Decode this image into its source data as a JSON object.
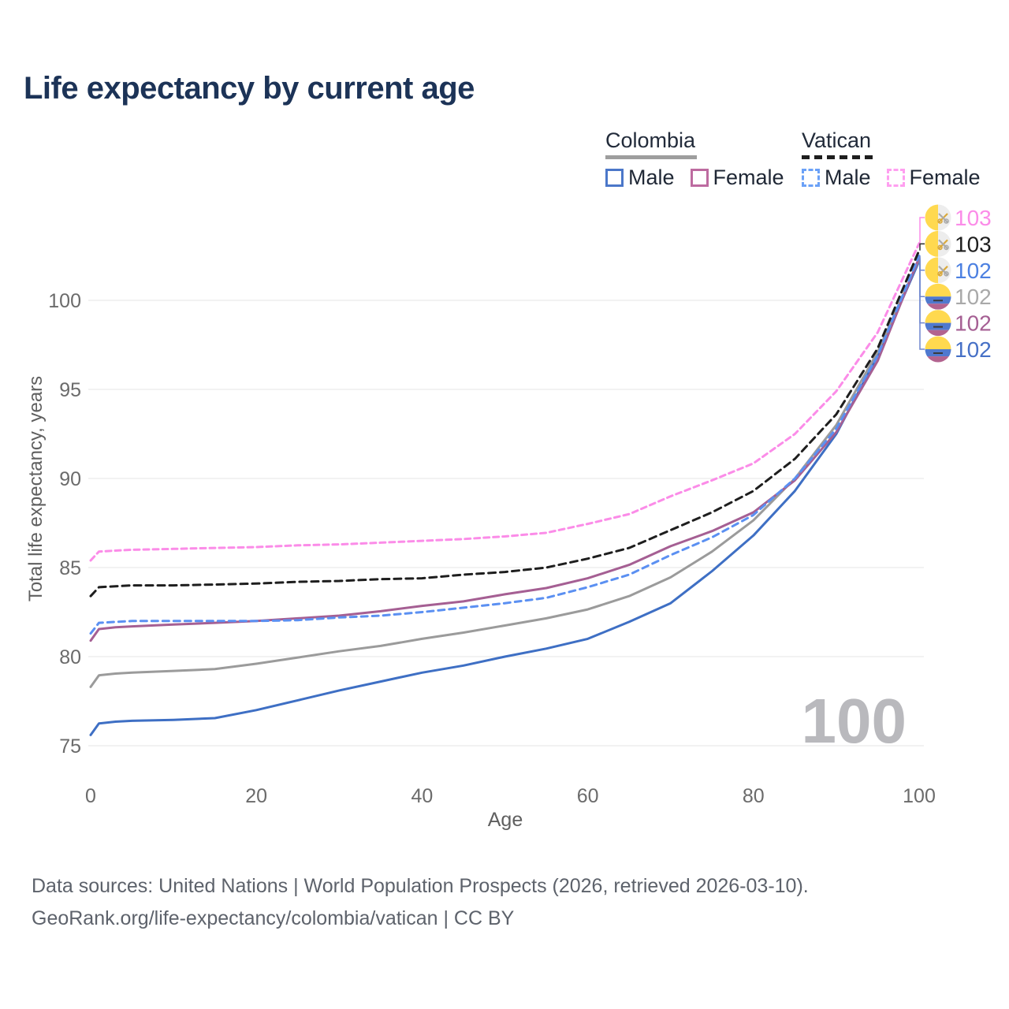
{
  "title": "Life expectancy by current age",
  "legend": {
    "groups": [
      {
        "country": "Colombia",
        "line_style": "solid",
        "underline_color": "#9e9e9e",
        "items": [
          {
            "label": "Male",
            "color": "#4b77c9"
          },
          {
            "label": "Female",
            "color": "#bd6ba0"
          }
        ]
      },
      {
        "country": "Vatican",
        "line_style": "dashed",
        "underline_color": "#1e1e1e",
        "items": [
          {
            "label": "Male",
            "color": "#6ba1f7"
          },
          {
            "label": "Female",
            "color": "#ff9ff0"
          }
        ]
      }
    ]
  },
  "chart_data": {
    "type": "line",
    "xlabel": "Age",
    "ylabel": "Total life expectancy, years",
    "xticks": [
      0,
      20,
      40,
      60,
      80,
      100
    ],
    "yticks": [
      75,
      80,
      85,
      90,
      95,
      100
    ],
    "xlim": [
      0,
      100
    ],
    "ylim": [
      74,
      104
    ],
    "grid": "horizontal",
    "grid_color": "#ebebeb",
    "tick_color": "#6b6b6b",
    "watermark": "100",
    "watermark_color": "#b9b9bd",
    "x": [
      0,
      1,
      3,
      5,
      10,
      15,
      20,
      25,
      30,
      35,
      40,
      45,
      50,
      55,
      60,
      65,
      70,
      75,
      80,
      85,
      90,
      95,
      100
    ],
    "series": [
      {
        "id": "colombia_male",
        "name": "Colombia Male",
        "style": "solid",
        "color": "#3e6fc4",
        "values": [
          75.6,
          76.25,
          76.35,
          76.4,
          76.45,
          76.55,
          77.0,
          77.55,
          78.1,
          78.6,
          79.1,
          79.5,
          80.0,
          80.45,
          81.0,
          81.95,
          83.0,
          84.8,
          86.8,
          89.3,
          92.5,
          96.9,
          102.2
        ]
      },
      {
        "id": "colombia_both",
        "name": "Colombia (both sexes)",
        "style": "solid",
        "color": "#9b9b9b",
        "values": [
          78.3,
          78.95,
          79.05,
          79.1,
          79.2,
          79.3,
          79.6,
          79.95,
          80.3,
          80.6,
          81.0,
          81.35,
          81.75,
          82.15,
          82.65,
          83.4,
          84.45,
          85.9,
          87.65,
          90.0,
          93.0,
          97.1,
          102.3
        ]
      },
      {
        "id": "colombia_female",
        "name": "Colombia Female",
        "style": "solid",
        "color": "#a55f93",
        "values": [
          80.9,
          81.55,
          81.65,
          81.7,
          81.8,
          81.9,
          82.0,
          82.15,
          82.3,
          82.55,
          82.85,
          83.1,
          83.5,
          83.85,
          84.4,
          85.15,
          86.2,
          87.05,
          88.1,
          89.9,
          92.6,
          96.6,
          102.4
        ]
      },
      {
        "id": "vatican_male",
        "name": "Vatican Male",
        "style": "dashed",
        "color": "#5b90f2",
        "values": [
          81.3,
          81.9,
          81.95,
          82.0,
          82.0,
          82.0,
          82.0,
          82.05,
          82.2,
          82.3,
          82.5,
          82.75,
          83.0,
          83.3,
          83.9,
          84.6,
          85.7,
          86.7,
          87.95,
          90.0,
          92.8,
          96.9,
          102.5
        ]
      },
      {
        "id": "vatican_both",
        "name": "Vatican (both sexes)",
        "style": "dashed",
        "color": "#1e1e1e",
        "values": [
          83.4,
          83.9,
          83.95,
          84.0,
          84.0,
          84.05,
          84.1,
          84.2,
          84.25,
          84.35,
          84.4,
          84.6,
          84.75,
          85.0,
          85.5,
          86.1,
          87.1,
          88.1,
          89.3,
          91.1,
          93.6,
          97.3,
          102.8
        ]
      },
      {
        "id": "vatican_female",
        "name": "Vatican Female",
        "style": "dashed",
        "color": "#fb8ce8",
        "values": [
          85.4,
          85.9,
          85.95,
          86.0,
          86.05,
          86.1,
          86.15,
          86.25,
          86.3,
          86.4,
          86.5,
          86.6,
          86.75,
          86.95,
          87.45,
          88.0,
          89.0,
          89.9,
          90.85,
          92.5,
          94.9,
          98.2,
          103.2
        ]
      }
    ],
    "end_labels": [
      {
        "text": "103",
        "flag": "vatican",
        "color": "#fb8ce8",
        "series": "vatican_female"
      },
      {
        "text": "103",
        "flag": "vatican",
        "color": "#1e1e1e",
        "series": "vatican_both"
      },
      {
        "text": "102",
        "flag": "vatican",
        "color": "#4c80e1",
        "series": "vatican_male"
      },
      {
        "text": "102",
        "flag": "colombia",
        "color": "#a9a9a9",
        "series": "colombia_both"
      },
      {
        "text": "102",
        "flag": "colombia",
        "color": "#a55f93",
        "series": "colombia_female"
      },
      {
        "text": "102",
        "flag": "colombia",
        "color": "#4670c6",
        "series": "colombia_male"
      }
    ],
    "flag_colors": {
      "yellow": "#ffd94f",
      "colombia_blue": "#4f79cf",
      "colombia_red": "#b2638f",
      "vatican_white": "#ededed",
      "key_gold": "#d9a93c",
      "key_silver": "#ababab"
    },
    "leader_color": "#6e86cf"
  },
  "footer": {
    "line1": "Data sources: United Nations | World Population Prospects (2026, retrieved 2026-03-10).",
    "line2": "GeoRank.org/life-expectancy/colombia/vatican | CC BY"
  }
}
